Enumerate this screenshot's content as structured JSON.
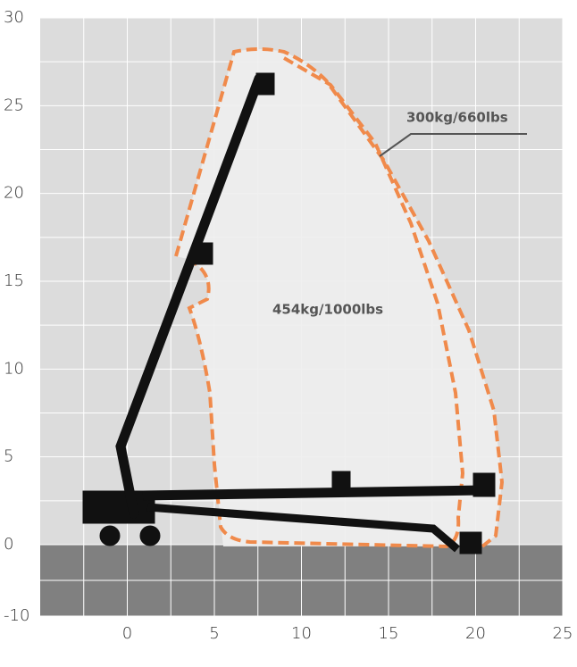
{
  "chart_data": {
    "type": "reach-diagram",
    "xlim": [
      -5,
      25
    ],
    "ylim": [
      -10,
      30
    ],
    "xticks": [
      0,
      5,
      10,
      15,
      20,
      25
    ],
    "yticks": [
      -10,
      0,
      5,
      10,
      15,
      20,
      25,
      30
    ],
    "annotations": [
      "300kg/660lbs",
      "454kg/1000lbs"
    ]
  }
}
